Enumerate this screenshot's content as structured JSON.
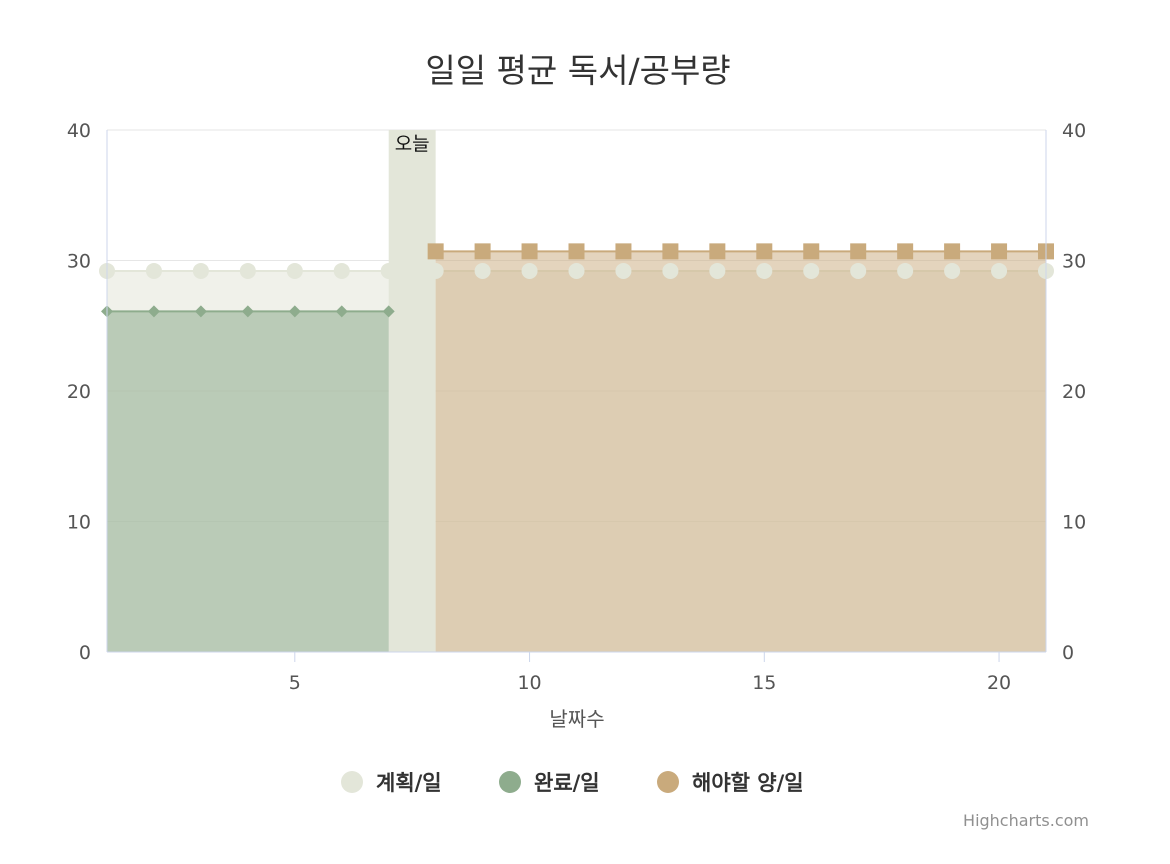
{
  "chart_data": {
    "type": "area",
    "title": "일일 평균 독서/공부량",
    "xlabel": "날짜수",
    "ylabel": "",
    "xlim": [
      1,
      21
    ],
    "ylim": [
      0,
      40
    ],
    "x_ticks": [
      "5",
      "10",
      "15",
      "20"
    ],
    "y_ticks": [
      "0",
      "10",
      "20",
      "30",
      "40"
    ],
    "y_ticks_right": [
      "0",
      "10",
      "20",
      "30",
      "40"
    ],
    "grid": true,
    "legend_position": "bottom",
    "plot_band": {
      "from": 7,
      "to": 8,
      "label": "오늘",
      "color": "#e3e6d9"
    },
    "series": [
      {
        "name": "계획/일",
        "color": "#e3e6d9",
        "marker": "circle",
        "x": [
          1,
          2,
          3,
          4,
          5,
          6,
          7,
          8,
          9,
          10,
          11,
          12,
          13,
          14,
          15,
          16,
          17,
          18,
          19,
          20,
          21
        ],
        "values": [
          29.2,
          29.2,
          29.2,
          29.2,
          29.2,
          29.2,
          29.2,
          29.2,
          29.2,
          29.2,
          29.2,
          29.2,
          29.2,
          29.2,
          29.2,
          29.2,
          29.2,
          29.2,
          29.2,
          29.2,
          29.2
        ]
      },
      {
        "name": "완료/일",
        "color": "#8eac8d",
        "marker": "diamond",
        "x": [
          1,
          2,
          3,
          4,
          5,
          6,
          7
        ],
        "values": [
          26.1,
          26.1,
          26.1,
          26.1,
          26.1,
          26.1,
          26.1
        ]
      },
      {
        "name": "해야할 양/일",
        "color": "#c9aa7c",
        "marker": "square",
        "x": [
          8,
          9,
          10,
          11,
          12,
          13,
          14,
          15,
          16,
          17,
          18,
          19,
          20,
          21
        ],
        "values": [
          30.7,
          30.7,
          30.7,
          30.7,
          30.7,
          30.7,
          30.7,
          30.7,
          30.7,
          30.7,
          30.7,
          30.7,
          30.7,
          30.7
        ]
      }
    ]
  },
  "credits": "Highcharts.com"
}
